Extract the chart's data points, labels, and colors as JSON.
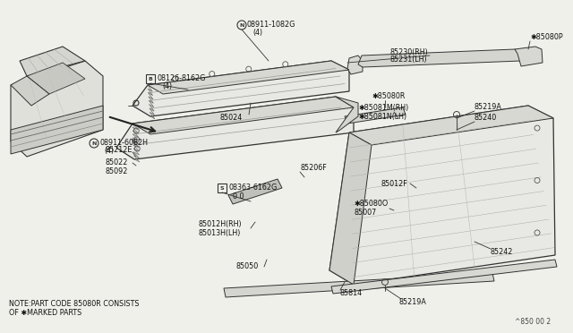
{
  "bg_color": "#f0f0eb",
  "note_line1": "NOTE:PART CODE 85080R CONSISTS",
  "note_line2": "OF ✱MARKED PARTS",
  "page_code": "^850 00 2",
  "line_color": "#333333",
  "fill_light": "#e8e8e4",
  "fill_mid": "#d8d8d2"
}
